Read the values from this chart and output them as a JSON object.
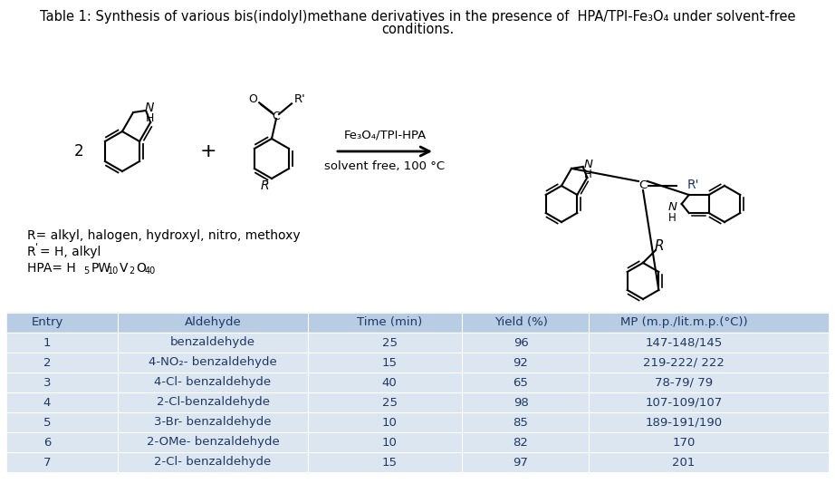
{
  "title_line1": "Table 1: Synthesis of various bis(indolyl)methane derivatives in the presence of  HPA/TPI-Fe₃O₄ under solvent-free",
  "title_line2": "conditions.",
  "bg_color": "#ffffff",
  "table_header_bg": "#b8cce4",
  "table_row_bg": "#dce6f1",
  "table_text_color": "#1f3864",
  "header_cols": [
    "Entry",
    "Aldehyde",
    "Time (min)",
    "Yield (%)",
    "MP (m.p./lit.m.p.(°C))"
  ],
  "rows": [
    [
      "1",
      "benzaldehyde",
      "25",
      "96",
      "147-148/145"
    ],
    [
      "2",
      "4-NO₂- benzaldehyde",
      "15",
      "92",
      "219-222/ 222"
    ],
    [
      "3",
      "4-Cl- benzaldehyde",
      "40",
      "65",
      "78-79/ 79"
    ],
    [
      "4",
      "2-Cl-benzaldehyde",
      "25",
      "98",
      "107-109/107"
    ],
    [
      "5",
      "3-Br- benzaldehyde",
      "10",
      "85",
      "189-191/190"
    ],
    [
      "6",
      "2-OMe- benzaldehyde",
      "10",
      "82",
      "170"
    ],
    [
      "7",
      "2-Cl- benzaldehyde",
      "15",
      "97",
      "201"
    ]
  ],
  "reaction_text1": "Fe₃O₄/TPI-HPA",
  "reaction_text2": "solvent free, 100 °C",
  "note1": "R= alkyl, halogen, hydroxyl, nitro, methoxy",
  "note2_a": "R",
  "note2_b": "= H, alkyl",
  "note3_prefix": "HPA= H",
  "note3_sub1": "5",
  "note3_mid1": "PW",
  "note3_sub2": "10",
  "note3_mid2": "V",
  "note3_sub3": "2",
  "note3_mid3": "O",
  "note3_sub4": "40",
  "lw": 1.5,
  "black": "#000000",
  "dark_blue": "#1f3864"
}
